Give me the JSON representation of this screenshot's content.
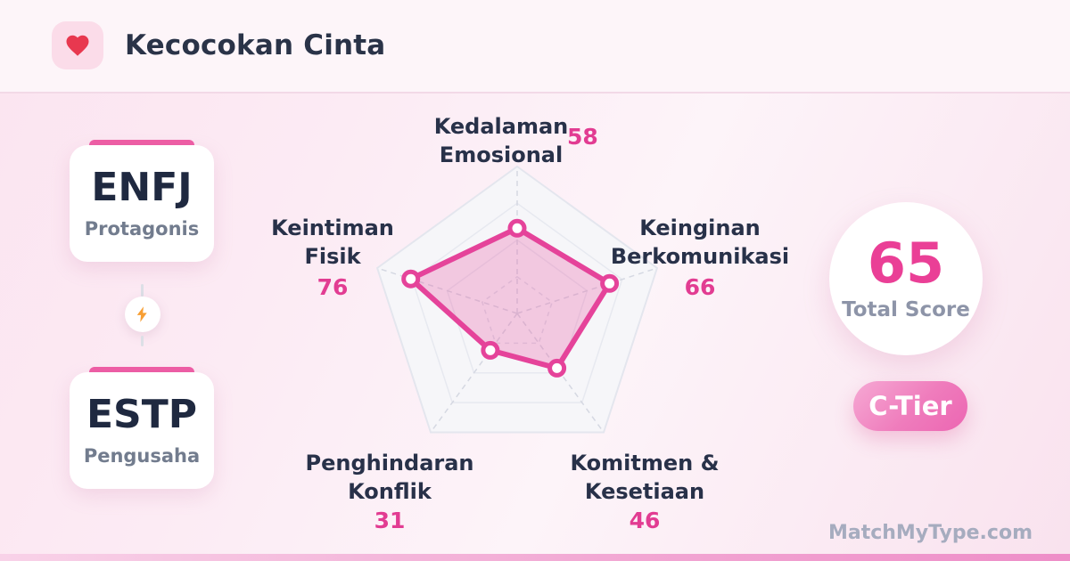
{
  "header": {
    "title": "Kecocokan Cinta"
  },
  "persons": [
    {
      "type": "ENFJ",
      "subtitle": "Protagonis"
    },
    {
      "type": "ESTP",
      "subtitle": "Pengusaha"
    }
  ],
  "chart_data": {
    "type": "radar",
    "axes": [
      {
        "label": "Kedalaman\nEmosional",
        "value": 58
      },
      {
        "label": "Keinginan\nBerkomunikasi",
        "value": 66
      },
      {
        "label": "Komitmen &\nKesetiaan",
        "value": 46
      },
      {
        "label": "Penghindaran\nKonflik",
        "value": 31
      },
      {
        "label": "Keintiman\nFisik",
        "value": 76
      }
    ],
    "scale": {
      "min": 0,
      "max": 100,
      "rings": [
        25,
        50,
        75,
        100
      ]
    },
    "colors": {
      "stroke": "#e5439a",
      "fill": "rgba(232,92,166,0.30)",
      "grid": "#e4e6ee"
    }
  },
  "score": {
    "value": 65,
    "label": "Total Score",
    "tier": "C-Tier"
  },
  "footer": {
    "watermark": "MatchMyType.com"
  }
}
